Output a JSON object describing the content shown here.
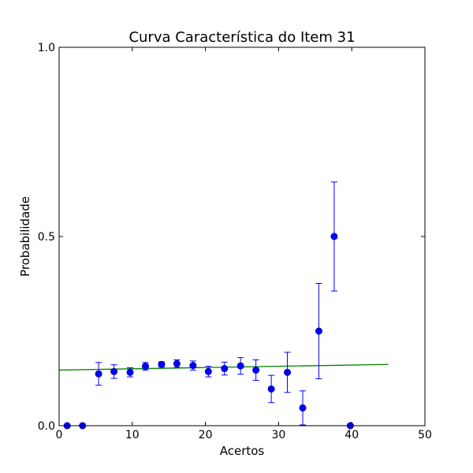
{
  "chart_data": {
    "type": "scatter",
    "title": "Curva Característica do Item 31",
    "xlabel": "Acertos",
    "ylabel": "Probabilidade",
    "xlim": [
      0,
      50
    ],
    "ylim": [
      0.0,
      1.0
    ],
    "xticks": [
      0,
      10,
      20,
      30,
      40,
      50
    ],
    "xtick_labels": [
      "0",
      "10",
      "20",
      "30",
      "40",
      "50"
    ],
    "yticks": [
      0.0,
      0.5,
      1.0
    ],
    "ytick_labels": [
      "0.0",
      "0.5",
      "1.0"
    ],
    "grid": false,
    "colors": {
      "points": "#0000ff",
      "fit_line": "#008000",
      "axes": "#000000"
    },
    "points": [
      {
        "x": 1.1,
        "y": 0.0,
        "err": 0
      },
      {
        "x": 3.2,
        "y": 0.0,
        "err": 0
      },
      {
        "x": 5.4,
        "y": 0.137,
        "err": 0.03
      },
      {
        "x": 7.5,
        "y": 0.143,
        "err": 0.018
      },
      {
        "x": 9.7,
        "y": 0.141,
        "err": 0.012
      },
      {
        "x": 11.8,
        "y": 0.157,
        "err": 0.01
      },
      {
        "x": 14.0,
        "y": 0.162,
        "err": 0.007
      },
      {
        "x": 16.1,
        "y": 0.164,
        "err": 0.01
      },
      {
        "x": 18.3,
        "y": 0.159,
        "err": 0.012
      },
      {
        "x": 20.4,
        "y": 0.143,
        "err": 0.014
      },
      {
        "x": 22.6,
        "y": 0.151,
        "err": 0.017
      },
      {
        "x": 24.8,
        "y": 0.158,
        "err": 0.022
      },
      {
        "x": 26.9,
        "y": 0.147,
        "err": 0.027
      },
      {
        "x": 29.0,
        "y": 0.097,
        "err": 0.036
      },
      {
        "x": 31.2,
        "y": 0.141,
        "err": 0.053
      },
      {
        "x": 33.3,
        "y": 0.047,
        "err": 0.045
      },
      {
        "x": 35.5,
        "y": 0.25,
        "err": 0.126
      },
      {
        "x": 37.6,
        "y": 0.5,
        "err": 0.144
      },
      {
        "x": 39.8,
        "y": 0.0,
        "err": 0
      }
    ],
    "fit_line": {
      "x": [
        0,
        45
      ],
      "y": [
        0.147,
        0.162
      ]
    }
  }
}
